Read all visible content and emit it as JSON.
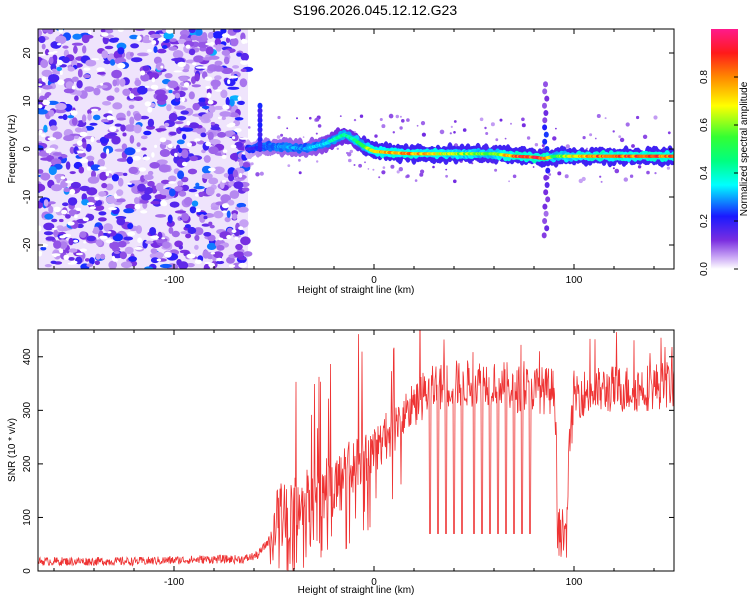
{
  "title": "S196.2026.045.12.12.G23",
  "colors": {
    "line": "#ee3333",
    "axis": "#000000",
    "background": "#ffffff",
    "colormap": [
      "#ffffff",
      "#c9a6f5",
      "#7a2ee0",
      "#1a1aff",
      "#00ffff",
      "#33ff33",
      "#ffff00",
      "#ff8800",
      "#ff1a1a",
      "#ff1a8c"
    ]
  },
  "chart_data": [
    {
      "type": "heatmap",
      "name": "spectrogram",
      "title": "S196.2026.045.12.12.G23",
      "xlabel": "Height of straight line (km)",
      "ylabel": "Frequency (Hz)",
      "xlim": [
        -168,
        150
      ],
      "ylim": [
        -25,
        25
      ],
      "xticks": [
        -100,
        0,
        100
      ],
      "yticks": [
        -20,
        -10,
        0,
        10,
        20
      ],
      "colorbar": {
        "label": "Normalized spectral amplitude",
        "range": [
          0,
          1
        ],
        "ticks": [
          0.0,
          0.2,
          0.4,
          0.6,
          0.8
        ]
      },
      "noise_region_x": [
        -168,
        -63
      ],
      "ridge": {
        "x": [
          -63,
          -55,
          -45,
          -35,
          -25,
          -15,
          -10,
          -5,
          0,
          10,
          20,
          40,
          60,
          70,
          80,
          85,
          90,
          100,
          110,
          120,
          150
        ],
        "freq": [
          0,
          0.5,
          0.5,
          0,
          1,
          3,
          2,
          0.5,
          -0.5,
          -0.8,
          -1,
          -1,
          -1,
          -1.5,
          -1.7,
          -2,
          -1.5,
          -1.5,
          -1.5,
          -1.5,
          -1.5
        ],
        "amplitude": [
          0.15,
          0.25,
          0.3,
          0.3,
          0.35,
          0.45,
          0.45,
          0.55,
          0.7,
          0.8,
          0.8,
          0.65,
          0.55,
          0.85,
          0.9,
          0.9,
          0.55,
          0.7,
          0.85,
          0.85,
          0.85
        ]
      }
    },
    {
      "type": "line",
      "name": "snr",
      "xlabel": "Height of straight line (km)",
      "ylabel": "SNR (10 * v/v)",
      "xlim": [
        -168,
        150
      ],
      "ylim": [
        0,
        450
      ],
      "xticks": [
        -100,
        0,
        100
      ],
      "yticks": [
        0,
        100,
        200,
        300,
        400
      ],
      "series": [
        {
          "name": "SNR",
          "x": [
            -168,
            -140,
            -120,
            -100,
            -80,
            -65,
            -58,
            -52,
            -48,
            -44,
            -40,
            -35,
            -30,
            -25,
            -20,
            -15,
            -10,
            -5,
            0,
            5,
            10,
            15,
            20,
            25,
            30,
            40,
            50,
            60,
            70,
            80,
            90,
            95,
            100,
            110,
            120,
            130,
            140,
            150
          ],
          "values": [
            18,
            18,
            18,
            20,
            22,
            22,
            30,
            60,
            100,
            110,
            115,
            130,
            140,
            150,
            160,
            170,
            200,
            210,
            220,
            250,
            260,
            290,
            310,
            330,
            340,
            350,
            350,
            355,
            340,
            340,
            335,
            90,
            330,
            335,
            340,
            340,
            345,
            350
          ],
          "dropouts_x": [
            28,
            32,
            36,
            40,
            44,
            50,
            54,
            58,
            62,
            66,
            70,
            74,
            78
          ],
          "dropout_value": 70,
          "gap_region_x": [
            91.5,
            96.5
          ],
          "gap_region_values": [
            25,
            120
          ]
        }
      ]
    }
  ]
}
